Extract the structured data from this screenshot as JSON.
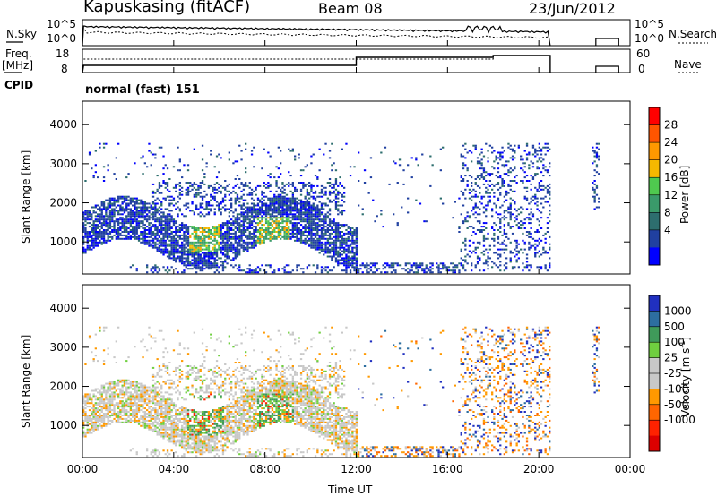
{
  "header": {
    "station": "Kapuskasing (fitACF)",
    "beam": "Beam 08",
    "date": "23/Jun/2012"
  },
  "status_panels": {
    "nsky_label": "N.Sky",
    "nsky_ticks": [
      "10^5",
      "10^0"
    ],
    "nsearch_label": "N.Search",
    "nsearch_ticks": [
      "10^5",
      "10^0"
    ],
    "freq_label": "Freq.",
    "freq_unit": "[MHz]",
    "freq_ticks": [
      "18",
      "8"
    ],
    "nave_label": "Nave",
    "nave_ticks": [
      "60",
      "0"
    ],
    "cpid_label": "CPID",
    "mode": "normal (fast) 151"
  },
  "chart_data": [
    {
      "type": "heatmap",
      "name": "power",
      "ylabel": "Slant Range [km]",
      "ylim": [
        180,
        4600
      ],
      "yticks": [
        "4000",
        "3000",
        "2000",
        "1000"
      ],
      "colorbar_label": "Power [dB]",
      "colorbar_ticks": [
        "28",
        "24",
        "20",
        "16",
        "12",
        "8",
        "4"
      ],
      "colorbar_colors": [
        "#ff0000",
        "#ff5500",
        "#ff9900",
        "#f5b800",
        "#4fc94f",
        "#3a9a6a",
        "#2d6e6e",
        "#2040a0",
        "#0000ff"
      ]
    },
    {
      "type": "heatmap",
      "name": "velocity",
      "ylabel": "Slant Range [km]",
      "ylim": [
        180,
        4600
      ],
      "yticks": [
        "4000",
        "3000",
        "2000",
        "1000"
      ],
      "colorbar_label": "Velocity [m s",
      "colorbar_label_sup": "-1",
      "colorbar_label_end": "]",
      "colorbar_ticks": [
        "1000",
        "500",
        "100",
        "25",
        "-25",
        "-100",
        "-500",
        "-1000"
      ],
      "colorbar_colors": [
        "#2030c0",
        "#2d6ea0",
        "#3f9a5a",
        "#6fcf3f",
        "#c8c8c8",
        "#c8c8c8",
        "#ff9900",
        "#ff6600",
        "#ff2200",
        "#dd0000"
      ]
    }
  ],
  "time_axis": {
    "label": "Time UT",
    "ticks": [
      "00:00",
      "04:00",
      "08:00",
      "12:00",
      "16:00",
      "20:00",
      "00:00"
    ]
  }
}
